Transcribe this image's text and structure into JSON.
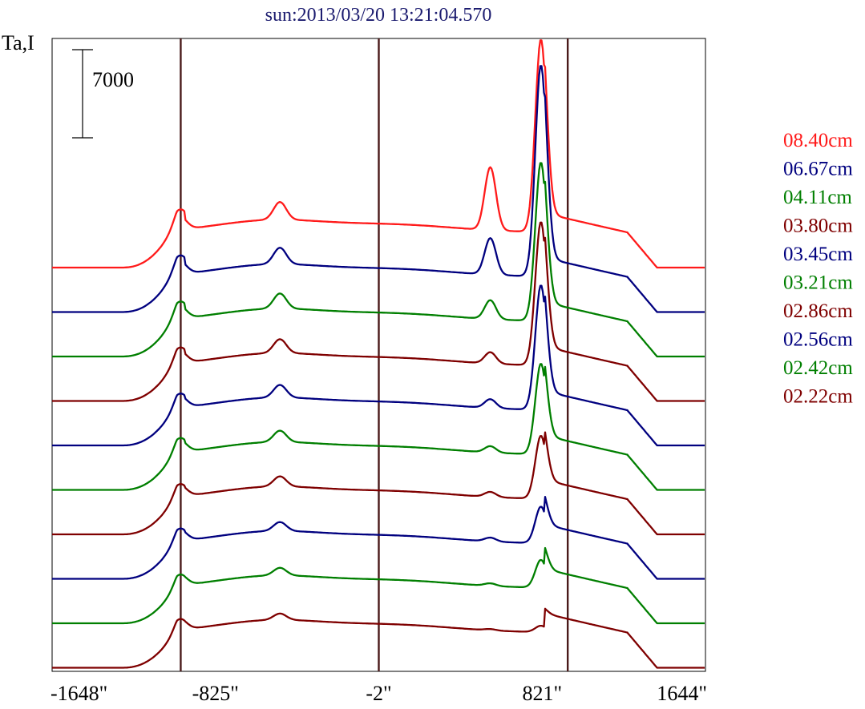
{
  "chart_data": {
    "type": "line",
    "title": "sun:2013/03/20 13:21:04.570",
    "ylabel": "Ta,I",
    "scale_bar": {
      "value": 7000,
      "label": "7000"
    },
    "xlim": [
      -1648,
      1644
    ],
    "xticks": [
      "-1648\"",
      "-825\"",
      "-2\"",
      "821\"",
      "1644\""
    ],
    "vlines": [
      -1000,
      -2,
      950
    ],
    "series": [
      {
        "name": "08.40cm",
        "color": "#ff1a1a",
        "peak": 18100,
        "left_rim": 3700,
        "shoulder": 5000
      },
      {
        "name": "06.67cm",
        "color": "#00007f",
        "peak": 19600,
        "left_rim": 3600,
        "shoulder": 2900
      },
      {
        "name": "04.11cm",
        "color": "#007f00",
        "peak": 15400,
        "left_rim": 3500,
        "shoulder": 1500
      },
      {
        "name": "03.80cm",
        "color": "#7f0000",
        "peak": 14200,
        "left_rim": 3400,
        "shoulder": 900
      },
      {
        "name": "03.45cm",
        "color": "#00007f",
        "peak": 12700,
        "left_rim": 3300,
        "shoulder": 700
      },
      {
        "name": "03.21cm",
        "color": "#007f00",
        "peak": 10000,
        "left_rim": 3300,
        "shoulder": 500
      },
      {
        "name": "02.86cm",
        "color": "#7f0000",
        "peak": 7800,
        "left_rim": 3200,
        "shoulder": 400
      },
      {
        "name": "02.56cm",
        "color": "#00007f",
        "peak": 5700,
        "left_rim": 3200,
        "shoulder": 300
      },
      {
        "name": "02.42cm",
        "color": "#007f00",
        "peak": 5000,
        "left_rim": 3100,
        "shoulder": 200
      },
      {
        "name": "02.22cm",
        "color": "#7f0000",
        "peak": 3300,
        "left_rim": 3100,
        "shoulder": 100
      }
    ]
  }
}
